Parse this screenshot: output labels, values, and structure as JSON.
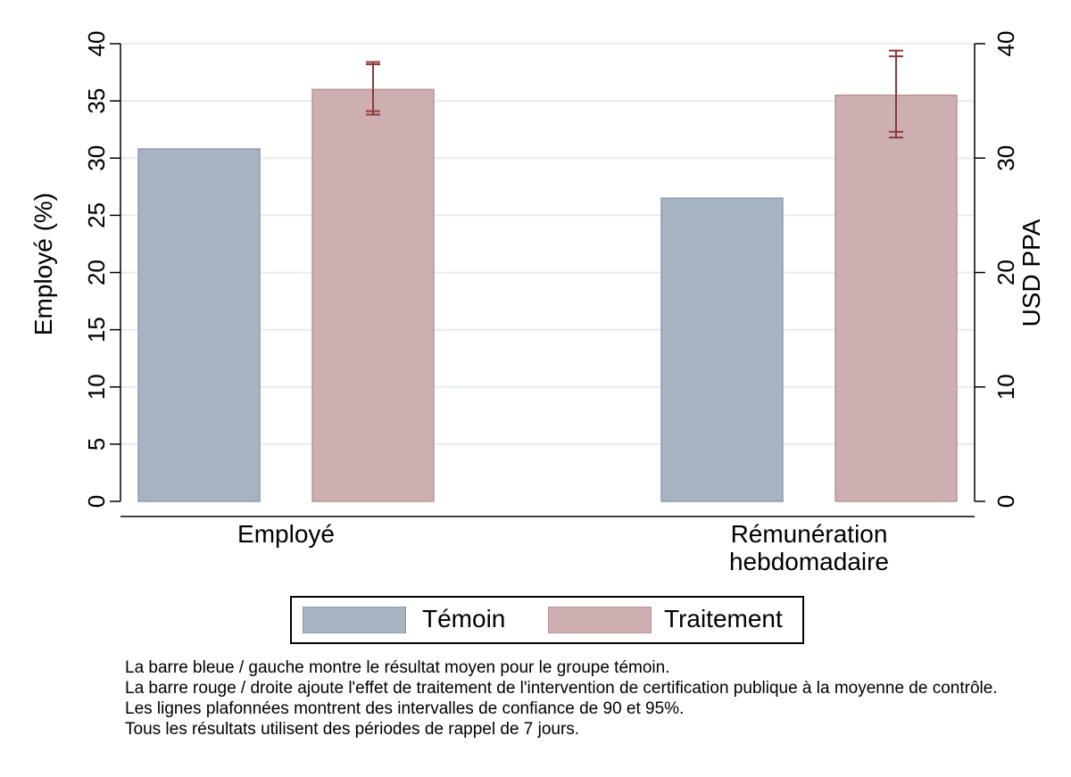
{
  "chart_data": {
    "type": "bar",
    "categories": [
      "Employé",
      "Rémunération\nhebdomadaire"
    ],
    "series": [
      {
        "name": "Témoin",
        "color": "#a6b3c1",
        "stroke": "#8a9bb0",
        "values": [
          30.8,
          26.5
        ]
      },
      {
        "name": "Traitement",
        "color": "#cdafb1",
        "stroke": "#b89597",
        "values": [
          36.0,
          35.5
        ],
        "ci90": [
          [
            34.1,
            38.2
          ],
          [
            32.3,
            38.9
          ]
        ],
        "ci95": [
          [
            33.8,
            38.4
          ],
          [
            31.8,
            39.4
          ]
        ]
      }
    ],
    "ylabel": "Employé (%)",
    "ylabel_right": "USD PPA",
    "ylim": [
      0,
      40
    ],
    "yticks": [
      0,
      5,
      10,
      15,
      20,
      25,
      30,
      35,
      40
    ],
    "yticks_right": [
      0,
      10,
      20,
      30,
      40
    ],
    "ci_color": "#8b3a3a",
    "grid": true,
    "legend_position": "bottom"
  },
  "notes": [
    "La barre bleue / gauche montre le résultat moyen pour le groupe témoin.",
    "La barre rouge / droite ajoute l'effet de traitement de l'intervention de certification publique à la moyenne de contrôle.",
    "Les lignes plafonnées montrent des intervalles de confiance de 90 et 95%.",
    "Tous les résultats utilisent des périodes de rappel de 7 jours."
  ]
}
